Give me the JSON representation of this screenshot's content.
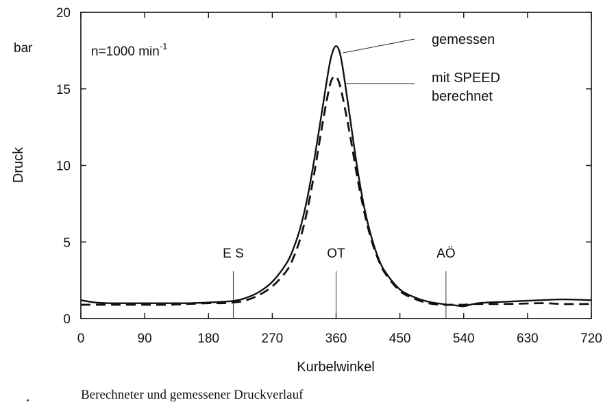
{
  "chart_data": {
    "type": "line",
    "xlabel": "Kurbelwinkel",
    "ylabel": "Druck",
    "yunit": "bar",
    "xlim": [
      0,
      720
    ],
    "ylim": [
      0,
      20
    ],
    "xticks": [
      0,
      90,
      180,
      270,
      360,
      450,
      540,
      630,
      720
    ],
    "yticks": [
      0,
      5,
      10,
      15,
      20
    ],
    "grid": false,
    "annotation": "n=1000 min-1",
    "annotation_main": "n=1000 min",
    "annotation_sup": "-1",
    "markers": [
      {
        "label": "E S",
        "x": 215
      },
      {
        "label": "OT",
        "x": 360
      },
      {
        "label": "AÖ",
        "x": 515
      }
    ],
    "series": [
      {
        "name": "gemessen",
        "style": "solid",
        "x": [
          0,
          20,
          40,
          60,
          90,
          120,
          150,
          180,
          200,
          215,
          230,
          250,
          270,
          290,
          300,
          310,
          320,
          330,
          340,
          350,
          355,
          360,
          365,
          370,
          380,
          390,
          400,
          410,
          420,
          430,
          450,
          470,
          490,
          510,
          530,
          540,
          560,
          600,
          650,
          680,
          720
        ],
        "values": [
          1.2,
          1.05,
          1.0,
          1.0,
          1.0,
          1.0,
          1.0,
          1.05,
          1.1,
          1.15,
          1.3,
          1.7,
          2.4,
          3.6,
          4.6,
          6.0,
          8.0,
          10.6,
          13.5,
          16.4,
          17.4,
          17.8,
          17.4,
          16.2,
          13.0,
          9.8,
          7.2,
          5.3,
          3.9,
          3.0,
          1.9,
          1.4,
          1.1,
          0.95,
          0.85,
          0.8,
          1.0,
          1.1,
          1.2,
          1.25,
          1.2
        ]
      },
      {
        "name": "mit SPEED berechnet",
        "label_lines": [
          "mit SPEED",
          "berechnet"
        ],
        "style": "dashed",
        "x": [
          0,
          20,
          40,
          60,
          90,
          120,
          150,
          180,
          200,
          215,
          230,
          250,
          270,
          290,
          300,
          310,
          320,
          330,
          340,
          350,
          355,
          360,
          365,
          370,
          380,
          390,
          400,
          410,
          420,
          430,
          450,
          470,
          490,
          510,
          530,
          540,
          560,
          600,
          650,
          680,
          720
        ],
        "values": [
          0.9,
          0.9,
          0.9,
          0.9,
          0.9,
          0.9,
          0.95,
          1.0,
          1.0,
          1.05,
          1.15,
          1.5,
          2.1,
          3.1,
          4.0,
          5.3,
          7.2,
          9.7,
          12.5,
          15.0,
          15.7,
          15.8,
          15.3,
          14.3,
          11.9,
          9.2,
          6.9,
          5.1,
          3.8,
          2.9,
          1.8,
          1.3,
          1.0,
          0.9,
          0.9,
          0.9,
          0.95,
          0.95,
          1.0,
          0.95,
          0.95
        ]
      }
    ]
  },
  "caption": "Berechneter und gemessener Druckverlauf"
}
